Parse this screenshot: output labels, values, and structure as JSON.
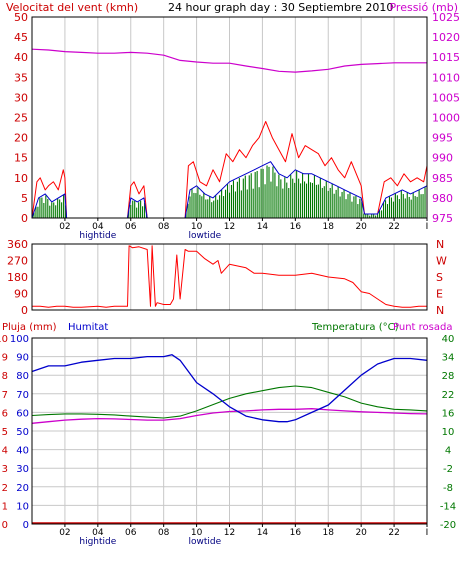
{
  "header": {
    "left": "Velocitat del vent (kmh)",
    "center": "24 hour graph day : 30 Septiembre 2010",
    "right": "Pressió (mb)"
  },
  "colors": {
    "wind_axis": "#cc0000",
    "gust": "#ff0000",
    "avg": "#0000cc",
    "wind_fill": "#007700",
    "pressure": "#cc00cc",
    "grid": "#c8c8c8",
    "frame": "#000000",
    "tide": "#000080",
    "humidity": "#0000cc",
    "temperature": "#007700",
    "dewpoint": "#cc00cc",
    "rain": "#cc0000"
  },
  "hours_axis": {
    "ticks": [
      "02",
      "04",
      "06",
      "08",
      "10",
      "12",
      "14",
      "16",
      "18",
      "20",
      "22",
      "I"
    ],
    "tide_top_labels": [
      {
        "text": "hightide",
        "hour": 4
      },
      {
        "text": "lowtide",
        "hour": 10.5
      }
    ],
    "tide_bottom_labels": [
      {
        "text": "hightide",
        "hour": 4
      },
      {
        "text": "lowtide",
        "hour": 10.5
      }
    ]
  },
  "chart_data": [
    {
      "type": "line",
      "x_unit": "hour",
      "xlim": [
        0,
        24
      ],
      "y_left": {
        "label": "Velocitat del vent (kmh)",
        "ylim": [
          0,
          50
        ],
        "ticks": [
          "0",
          "5",
          "10",
          "15",
          "20",
          "25",
          "30",
          "35",
          "40",
          "45",
          "50"
        ]
      },
      "y_right": {
        "label": "Pressió (mb)",
        "ylim": [
          975,
          1025
        ],
        "ticks": [
          "975",
          "980",
          "985",
          "990",
          "995",
          "1000",
          "1005",
          "1010",
          "1015",
          "1020",
          "1025"
        ]
      },
      "grid": true,
      "series": [
        {
          "role": "gust",
          "x": [
            0,
            0.3,
            0.5,
            0.8,
            1.0,
            1.3,
            1.6,
            1.9,
            2.0,
            2.1,
            5.8,
            6.0,
            6.2,
            6.5,
            6.8,
            7.0,
            9.3,
            9.5,
            9.8,
            10.2,
            10.6,
            11.0,
            11.4,
            11.8,
            12.2,
            12.6,
            13.0,
            13.4,
            13.8,
            14.2,
            14.6,
            15.0,
            15.4,
            15.8,
            16.2,
            16.6,
            17.0,
            17.4,
            17.8,
            18.2,
            18.6,
            19.0,
            19.4,
            19.8,
            20.0,
            20.2,
            20.6,
            21.0,
            21.4,
            21.8,
            22.2,
            22.6,
            23.0,
            23.4,
            23.8,
            24.0
          ],
          "y": [
            0,
            9,
            10,
            7,
            8,
            9,
            7,
            12,
            10,
            0,
            0,
            8,
            9,
            6,
            8,
            0,
            0,
            13,
            14,
            9,
            8,
            12,
            9,
            16,
            14,
            17,
            15,
            18,
            20,
            24,
            20,
            17,
            14,
            21,
            15,
            18,
            17,
            16,
            13,
            15,
            12,
            10,
            14,
            10,
            8,
            1,
            1,
            1,
            9,
            10,
            8,
            11,
            9,
            10,
            9,
            13
          ]
        },
        {
          "role": "avg",
          "x": [
            0,
            0.4,
            0.8,
            1.2,
            1.6,
            2.0,
            2.1,
            5.8,
            6.0,
            6.4,
            6.8,
            7.0,
            9.3,
            9.6,
            10.0,
            10.5,
            11.0,
            11.5,
            12.0,
            12.5,
            13.0,
            13.5,
            14.0,
            14.5,
            15.0,
            15.5,
            16.0,
            16.5,
            17.0,
            17.5,
            18.0,
            18.5,
            19.0,
            19.5,
            20.0,
            20.2,
            21.0,
            21.5,
            22.0,
            22.5,
            23.0,
            23.5,
            24.0
          ],
          "y": [
            0,
            5,
            6,
            4,
            5,
            6,
            0,
            0,
            5,
            4,
            5,
            0,
            0,
            7,
            8,
            6,
            5,
            7,
            9,
            10,
            11,
            12,
            13,
            14,
            11,
            10,
            12,
            11,
            11,
            10,
            9,
            8,
            7,
            6,
            5,
            1,
            1,
            5,
            6,
            7,
            6,
            7,
            8
          ]
        },
        {
          "role": "pressure",
          "x": [
            0,
            1,
            2,
            3,
            4,
            5,
            6,
            7,
            8,
            9,
            10,
            11,
            12,
            13,
            14,
            15,
            16,
            17,
            18,
            19,
            20,
            21,
            22,
            23,
            24
          ],
          "y": [
            1017,
            1016.8,
            1016.4,
            1016.2,
            1016,
            1016,
            1016.2,
            1016,
            1015.5,
            1014.2,
            1013.8,
            1013.5,
            1013.5,
            1012.8,
            1012.2,
            1011.5,
            1011.3,
            1011.6,
            1012,
            1012.8,
            1013.2,
            1013.4,
            1013.6,
            1013.6,
            1013.6
          ]
        }
      ]
    },
    {
      "type": "line",
      "x_unit": "hour",
      "xlim": [
        0,
        24
      ],
      "ylim": [
        0,
        360
      ],
      "y_ticks": [
        "360",
        "270",
        "180",
        "90",
        "0"
      ],
      "y_right_labels": [
        "N",
        "W",
        "S",
        "E",
        "N"
      ],
      "grid": true,
      "series": [
        {
          "role": "wind_direction",
          "x": [
            0,
            0.5,
            1.0,
            1.5,
            2.0,
            2.5,
            3.0,
            3.5,
            4.0,
            4.5,
            5.0,
            5.5,
            5.8,
            5.9,
            6.1,
            6.5,
            7.0,
            7.2,
            7.3,
            7.5,
            7.6,
            8.0,
            8.4,
            8.6,
            8.8,
            9.0,
            9.3,
            9.5,
            10.0,
            10.5,
            11.0,
            11.3,
            11.5,
            12.0,
            12.5,
            13.0,
            13.5,
            14.0,
            15.0,
            16.0,
            17.0,
            18.0,
            19.0,
            19.5,
            20.0,
            20.5,
            21.0,
            21.5,
            22.0,
            22.5,
            23.0,
            23.5,
            24.0
          ],
          "y": [
            20,
            20,
            15,
            20,
            20,
            15,
            15,
            18,
            20,
            15,
            20,
            20,
            20,
            350,
            340,
            345,
            330,
            20,
            350,
            20,
            40,
            30,
            30,
            60,
            300,
            60,
            330,
            320,
            320,
            280,
            250,
            270,
            200,
            250,
            240,
            230,
            200,
            200,
            190,
            190,
            200,
            180,
            170,
            150,
            100,
            90,
            60,
            30,
            20,
            15,
            15,
            20,
            20
          ]
        }
      ]
    },
    {
      "type": "line",
      "x_unit": "hour",
      "xlim": [
        0,
        24
      ],
      "y_left": {
        "labels": [
          "Pluja (mm)",
          "Humitat"
        ],
        "rain_ticks": [
          "0",
          "1",
          "2",
          "3",
          "4",
          "5",
          "6",
          "7",
          "8",
          "9",
          "10"
        ],
        "humidity_ticks": [
          "100",
          "90",
          "80",
          "70",
          "60",
          "50",
          "40",
          "30",
          "20",
          "10",
          "0"
        ]
      },
      "y_right": {
        "label": "Temperatura (°C)Punt rosada",
        "ylim": [
          -20,
          40
        ],
        "ticks": [
          "40",
          "34",
          "28",
          "22",
          "16",
          "10",
          "4",
          "-2",
          "-8",
          "-14",
          "-20"
        ]
      },
      "grid": true,
      "series": [
        {
          "role": "humidity",
          "x": [
            0,
            1,
            2,
            3,
            4,
            5,
            6,
            7,
            8,
            8.5,
            9,
            9.5,
            10,
            11,
            12,
            13,
            14,
            15,
            15.5,
            16,
            17,
            18,
            19,
            20,
            21,
            22,
            23,
            24
          ],
          "y": [
            82,
            85,
            85,
            87,
            88,
            89,
            89,
            90,
            90,
            91,
            88,
            82,
            76,
            70,
            63,
            58,
            56,
            55,
            55,
            56,
            60,
            64,
            72,
            80,
            86,
            89,
            89,
            88
          ]
        },
        {
          "role": "temperature",
          "x": [
            0,
            1,
            2,
            3,
            4,
            5,
            6,
            7,
            8,
            9,
            10,
            11,
            12,
            13,
            14,
            15,
            16,
            17,
            18,
            19,
            20,
            21,
            22,
            23,
            24
          ],
          "y": [
            15,
            15.3,
            15.5,
            15.5,
            15.4,
            15.2,
            14.8,
            14.5,
            14.2,
            14.8,
            16.5,
            18.5,
            20.5,
            22,
            23,
            24,
            24.5,
            24,
            22.5,
            21,
            19,
            17.8,
            17,
            16.8,
            16.5
          ]
        },
        {
          "role": "dewpoint",
          "x": [
            0,
            1,
            2,
            3,
            4,
            5,
            6,
            7,
            8,
            9,
            10,
            11,
            12,
            13,
            14,
            15,
            16,
            17,
            18,
            19,
            20,
            21,
            22,
            23,
            24
          ],
          "y": [
            12.5,
            13,
            13.5,
            13.8,
            14,
            13.9,
            13.7,
            13.5,
            13.5,
            14,
            15,
            15.8,
            16.3,
            16.5,
            16.8,
            17,
            17,
            17.2,
            16.8,
            16.5,
            16.2,
            16,
            15.8,
            15.6,
            15.5
          ]
        },
        {
          "role": "rain",
          "x": [
            0,
            24
          ],
          "y": [
            0,
            0
          ]
        }
      ]
    }
  ]
}
